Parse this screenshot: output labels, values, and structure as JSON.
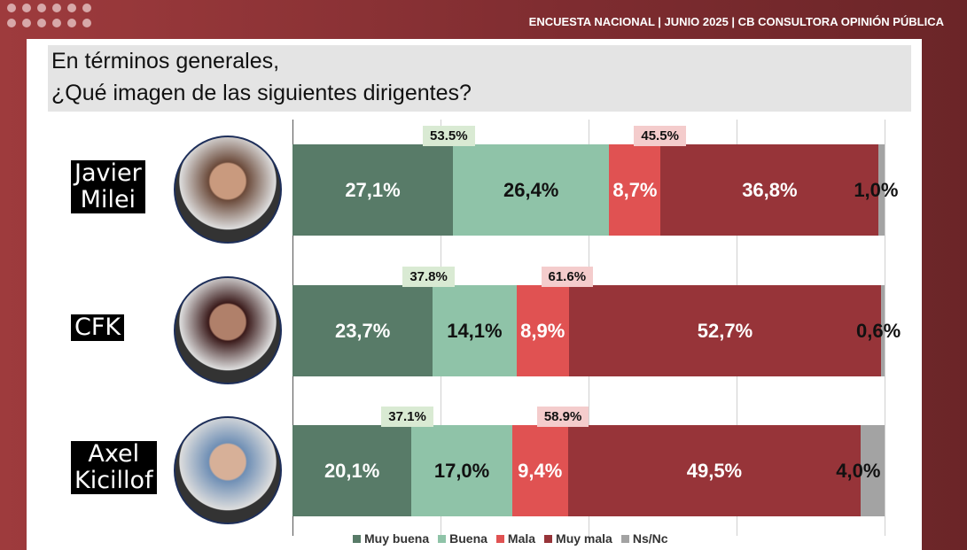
{
  "header": "ENCUESTA NACIONAL | JUNIO 2025 | CB CONSULTORA OPINIÓN PÚBLICA",
  "question": [
    "En términos generales,",
    "¿Qué imagen de las siguientes dirigentes?"
  ],
  "chart_data": {
    "type": "bar",
    "orientation": "horizontal",
    "stacked": true,
    "xlim": [
      0,
      100
    ],
    "categories": [
      "Javier Milei",
      "CFK",
      "Axel Kicillof"
    ],
    "category_labels": [
      [
        "Javier",
        "Milei"
      ],
      [
        "CFK"
      ],
      [
        "Axel",
        "Kicillof"
      ]
    ],
    "series": [
      {
        "name": "Muy buena",
        "color": "#587b68",
        "values": [
          27.1,
          23.7,
          20.1
        ],
        "labels": [
          "27,1%",
          "23,7%",
          "20,1%"
        ]
      },
      {
        "name": "Buena",
        "color": "#8fc3a8",
        "values": [
          26.4,
          14.1,
          17.0
        ],
        "labels": [
          "26,4%",
          "14,1%",
          "17,0%"
        ]
      },
      {
        "name": "Mala",
        "color": "#e05252",
        "values": [
          8.7,
          8.9,
          9.4
        ],
        "labels": [
          "8,7%",
          "8,9%",
          "9,4%"
        ]
      },
      {
        "name": "Muy mala",
        "color": "#973439",
        "values": [
          36.8,
          52.7,
          49.5
        ],
        "labels": [
          "36,8%",
          "52,7%",
          "49,5%"
        ]
      },
      {
        "name": "Ns/Nc",
        "color": "#a3a3a3",
        "values": [
          1.0,
          0.6,
          4.0
        ],
        "labels": [
          "1,0%",
          "0,6%",
          "4,0%"
        ]
      }
    ],
    "positive_totals": [
      "53.5%",
      "37.8%",
      "37.1%"
    ],
    "negative_totals": [
      "45.5%",
      "61.6%",
      "58.9%"
    ],
    "legend": "bottom"
  }
}
